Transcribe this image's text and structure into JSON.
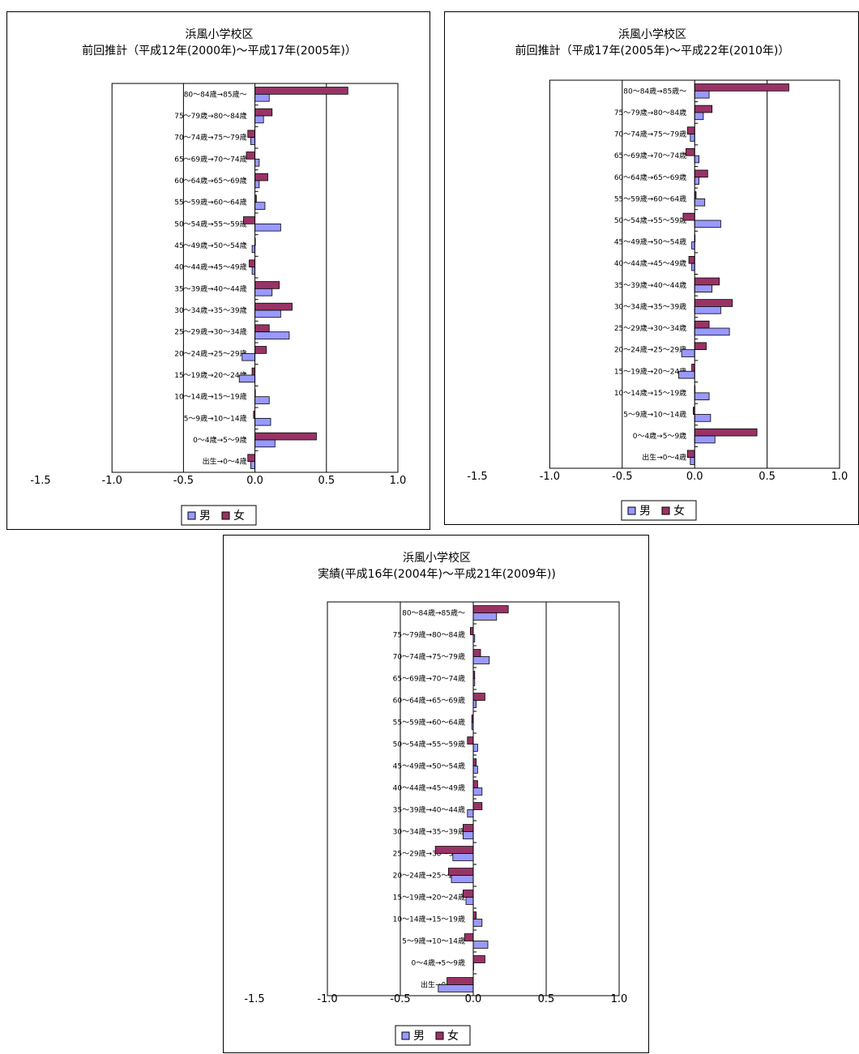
{
  "colors": {
    "male": "#9999ff",
    "female": "#993366"
  },
  "legend": {
    "male_label": "男",
    "female_label": "女"
  },
  "chart_data": [
    {
      "type": "bar",
      "title": "浜風小学校区",
      "subtitle": "前回推計（平成12年(2000年)～平成17年(2005年)）",
      "categories": [
        "80～84歳→85歳～",
        "75～79歳→80～84歳",
        "70～74歳→75～79歳",
        "65～69歳→70～74歳",
        "60～64歳→65～69歳",
        "55～59歳→60～64歳",
        "50～54歳→55～59歳",
        "45～49歳→50～54歳",
        "40～44歳→45～49歳",
        "35～39歳→40～44歳",
        "30～34歳→35～39歳",
        "25～29歳→30～34歳",
        "20～24歳→25～29歳",
        "15～19歳→20～24歳",
        "10～14歳→15～19歳",
        "5～9歳→10～14歳",
        "0～4歳→5～9歳",
        "出生→0～4歳"
      ],
      "series": [
        {
          "name": "男",
          "values": [
            0.1,
            0.06,
            -0.03,
            0.03,
            0.03,
            0.07,
            0.18,
            -0.02,
            -0.02,
            0.12,
            0.18,
            0.24,
            -0.09,
            -0.11,
            0.1,
            0.11,
            0.14,
            -0.03
          ]
        },
        {
          "name": "女",
          "values": [
            0.65,
            0.12,
            -0.05,
            -0.06,
            0.09,
            0.01,
            -0.08,
            0.0,
            -0.04,
            0.17,
            0.26,
            0.1,
            0.08,
            -0.02,
            0.0,
            -0.01,
            0.43,
            -0.05
          ]
        }
      ],
      "xlim": [
        -1.5,
        1.0
      ],
      "xticks": [
        "-1.5",
        "-1.0",
        "-0.5",
        "0.0",
        "0.5",
        "1.0"
      ]
    },
    {
      "type": "bar",
      "title": "浜風小学校区",
      "subtitle": "前回推計（平成17年(2005年)～平成22年(2010年)）",
      "categories": [
        "80～84歳→85歳～",
        "75～79歳→80～84歳",
        "70～74歳→75～79歳",
        "65～69歳→70～74歳",
        "60～64歳→65～69歳",
        "55～59歳→60～64歳",
        "50～54歳→55～59歳",
        "45～49歳→50～54歳",
        "40～44歳→45～49歳",
        "35～39歳→40～44歳",
        "30～34歳→35～39歳",
        "25～29歳→30～34歳",
        "20～24歳→25～29歳",
        "15～19歳→20～24歳",
        "10～14歳→15～19歳",
        "5～9歳→10～14歳",
        "0～4歳→5～9歳",
        "出生→0～4歳"
      ],
      "series": [
        {
          "name": "男",
          "values": [
            0.1,
            0.06,
            -0.03,
            0.03,
            0.03,
            0.07,
            0.18,
            -0.02,
            -0.02,
            0.12,
            0.18,
            0.24,
            -0.09,
            -0.11,
            0.1,
            0.11,
            0.14,
            -0.03
          ]
        },
        {
          "name": "女",
          "values": [
            0.65,
            0.12,
            -0.05,
            -0.06,
            0.09,
            0.01,
            -0.08,
            0.0,
            -0.04,
            0.17,
            0.26,
            0.1,
            0.08,
            -0.02,
            0.0,
            -0.01,
            0.43,
            -0.05
          ]
        }
      ],
      "xlim": [
        -1.5,
        1.0
      ],
      "xticks": [
        "-1.5",
        "-1.0",
        "-0.5",
        "0.0",
        "0.5",
        "1.0"
      ]
    },
    {
      "type": "bar",
      "title": "浜風小学校区",
      "subtitle": "実績(平成16年(2004年)～平成21年(2009年))",
      "categories": [
        "80～84歳→85歳～",
        "75～79歳→80～84歳",
        "70～74歳→75～79歳",
        "65～69歳→70～74歳",
        "60～64歳→65～69歳",
        "55～59歳→60～64歳",
        "50～54歳→55～59歳",
        "45～49歳→50～54歳",
        "40～44歳→45～49歳",
        "35～39歳→40～44歳",
        "30～34歳→35～39歳",
        "25～29歳→30～34歳",
        "20～24歳→25～29歳",
        "15～19歳→20～24歳",
        "10～14歳→15～19歳",
        "5～9歳→10～14歳",
        "0～4歳→5～9歳",
        "出生→0～4歳"
      ],
      "series": [
        {
          "name": "男",
          "values": [
            0.16,
            0.01,
            0.11,
            0.01,
            0.02,
            -0.01,
            0.03,
            0.03,
            0.06,
            -0.04,
            -0.07,
            -0.14,
            -0.15,
            -0.05,
            0.06,
            0.1,
            0.0,
            -0.24
          ]
        },
        {
          "name": "女",
          "values": [
            0.24,
            -0.02,
            0.05,
            0.01,
            0.08,
            -0.01,
            -0.04,
            0.02,
            0.03,
            0.06,
            -0.07,
            -0.26,
            -0.17,
            -0.07,
            0.02,
            -0.06,
            0.08,
            -0.18
          ]
        }
      ],
      "xlim": [
        -1.5,
        1.0
      ],
      "xticks": [
        "-1.5",
        "-1.0",
        "-0.5",
        "0.0",
        "0.5",
        "1.0"
      ]
    }
  ]
}
